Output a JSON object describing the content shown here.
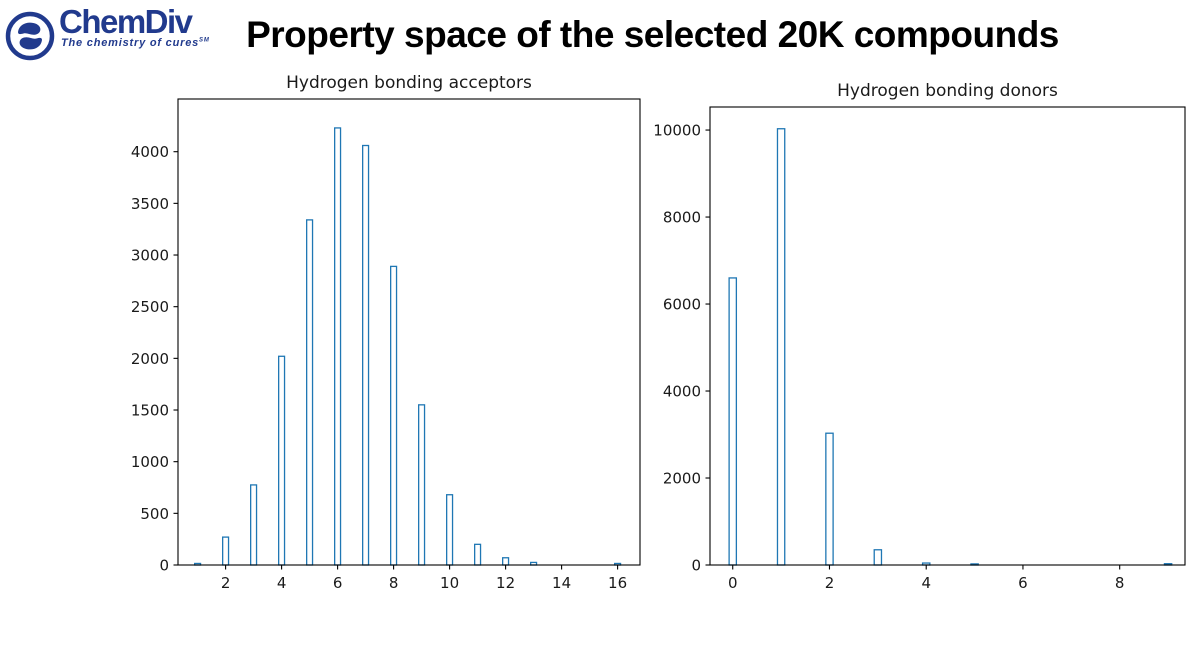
{
  "header": {
    "logo": {
      "brand": "ChemDiv",
      "tagline": "The chemistry of cures",
      "tagline_mark": "SM",
      "color": "#213A8D"
    },
    "title": "Property space of the selected 20K compounds"
  },
  "chart_data": [
    {
      "type": "bar",
      "title": "Hydrogen bonding acceptors",
      "x": [
        1,
        2,
        3,
        4,
        5,
        6,
        7,
        8,
        9,
        10,
        11,
        12,
        13,
        14,
        15,
        16
      ],
      "values": [
        15,
        270,
        775,
        2020,
        3340,
        4230,
        4060,
        2890,
        1550,
        680,
        200,
        70,
        25,
        0,
        0,
        15
      ],
      "xticks": [
        2,
        4,
        6,
        8,
        10,
        12,
        14,
        16
      ],
      "yticks": [
        0,
        500,
        1000,
        1500,
        2000,
        2500,
        3000,
        3500,
        4000
      ],
      "xlim": [
        0.3,
        16.8
      ],
      "ylim": [
        0,
        4510
      ],
      "bar_width_units": 0.21,
      "edge_color": "#1f77b4",
      "fill_color": "#ffffff",
      "grid": false,
      "legend": null
    },
    {
      "type": "bar",
      "title": "Hydrogen bonding donors",
      "x": [
        0,
        1,
        2,
        3,
        4,
        5,
        6,
        7,
        8,
        9
      ],
      "values": [
        6600,
        10030,
        3030,
        350,
        45,
        25,
        0,
        0,
        0,
        30
      ],
      "xticks": [
        0,
        2,
        4,
        6,
        8
      ],
      "yticks": [
        0,
        2000,
        4000,
        6000,
        8000,
        10000
      ],
      "xlim": [
        -0.47,
        9.35
      ],
      "ylim": [
        0,
        10530
      ],
      "bar_width_units": 0.15,
      "edge_color": "#1f77b4",
      "fill_color": "#ffffff",
      "grid": false,
      "legend": null
    }
  ]
}
